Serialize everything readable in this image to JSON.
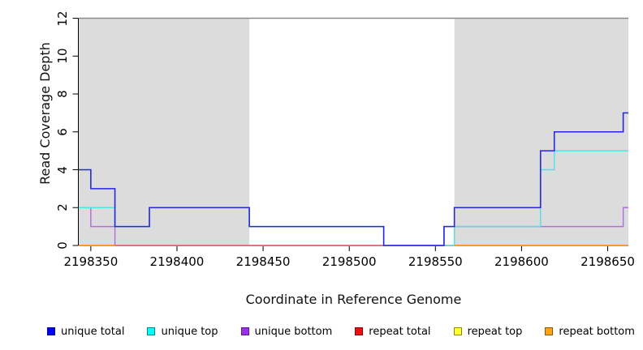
{
  "chart_data": {
    "type": "line",
    "subtype": "step-coverage-plot",
    "title": "",
    "xlabel": "Coordinate in Reference Genome",
    "ylabel": "Read Coverage Depth",
    "x_range": [
      2198343,
      2198662
    ],
    "y_range": [
      0,
      12
    ],
    "x_ticks": [
      2198350,
      2198400,
      2198450,
      2198500,
      2198550,
      2198600,
      2198650
    ],
    "y_ticks": [
      0,
      2,
      4,
      6,
      8,
      10,
      12
    ],
    "grid": false,
    "legend_position": "bottom",
    "background_color": "#ffffff",
    "axis_color": "#000000",
    "shaded_regions": [
      {
        "x_start": 2198343,
        "x_end": 2198442,
        "fill": "#dcdcdc"
      },
      {
        "x_start": 2198561,
        "x_end": 2198662,
        "fill": "#dcdcdc"
      }
    ],
    "top_boundary_line": {
      "y": 12,
      "color": "#8c8c8c"
    },
    "series": [
      {
        "name": "unique bottom",
        "line_color": "#b26be0",
        "stroke_width": 1.4,
        "segments": [
          {
            "steps": [
              [
                2198343,
                2
              ],
              [
                2198350,
                1
              ],
              [
                2198364,
                0
              ],
              [
                2198555,
                1
              ],
              [
                2198659,
                2
              ]
            ],
            "end": 2198662
          }
        ]
      },
      {
        "name": "repeat top",
        "line_color": "#ffeb3b",
        "stroke_width": 1.4,
        "segments": [
          {
            "steps": [
              [
                2198343,
                0
              ]
            ],
            "end": 2198662
          }
        ]
      },
      {
        "name": "repeat total",
        "line_color": "#d9567a",
        "stroke_width": 1.4,
        "segments": [
          {
            "steps": [
              [
                2198343,
                0
              ]
            ],
            "end": 2198662
          }
        ]
      },
      {
        "name": "repeat bottom",
        "line_color": "#ff9414",
        "stroke_width": 1.6,
        "segments": [
          {
            "steps": [
              [
                2198343,
                0
              ]
            ],
            "end": 2198364
          },
          {
            "steps": [
              [
                2198561,
                0
              ]
            ],
            "end": 2198662
          }
        ]
      },
      {
        "name": "unique top",
        "line_color": "#4de3e3",
        "stroke_width": 1.4,
        "segments": [
          {
            "steps": [
              [
                2198343,
                2
              ],
              [
                2198364,
                1
              ],
              [
                2198384,
                2
              ],
              [
                2198442,
                1
              ],
              [
                2198520,
                0
              ],
              [
                2198561,
                1
              ],
              [
                2198611,
                4
              ],
              [
                2198619,
                5
              ]
            ],
            "end": 2198662
          }
        ]
      },
      {
        "name": "unique total",
        "line_color": "#2626e8",
        "stroke_width": 1.6,
        "segments": [
          {
            "steps": [
              [
                2198343,
                4
              ],
              [
                2198350,
                3
              ],
              [
                2198364,
                1
              ],
              [
                2198384,
                2
              ],
              [
                2198442,
                1
              ],
              [
                2198520,
                0
              ],
              [
                2198555,
                1
              ],
              [
                2198561,
                2
              ],
              [
                2198611,
                5
              ],
              [
                2198619,
                6
              ],
              [
                2198659,
                7
              ]
            ],
            "end": 2198662
          }
        ]
      }
    ],
    "legend": [
      {
        "label": "unique total",
        "fill": "#0000ff",
        "border": "#00008b"
      },
      {
        "label": "unique top",
        "fill": "#00ffff",
        "border": "#008b8b"
      },
      {
        "label": "unique bottom",
        "fill": "#9b30e8",
        "border": "#5e1a8e"
      },
      {
        "label": "repeat total",
        "fill": "#ee1111",
        "border": "#8b0000"
      },
      {
        "label": "repeat top",
        "fill": "#ffff33",
        "border": "#8b8b00"
      },
      {
        "label": "repeat bottom",
        "fill": "#ffa319",
        "border": "#8b5a00"
      }
    ]
  }
}
